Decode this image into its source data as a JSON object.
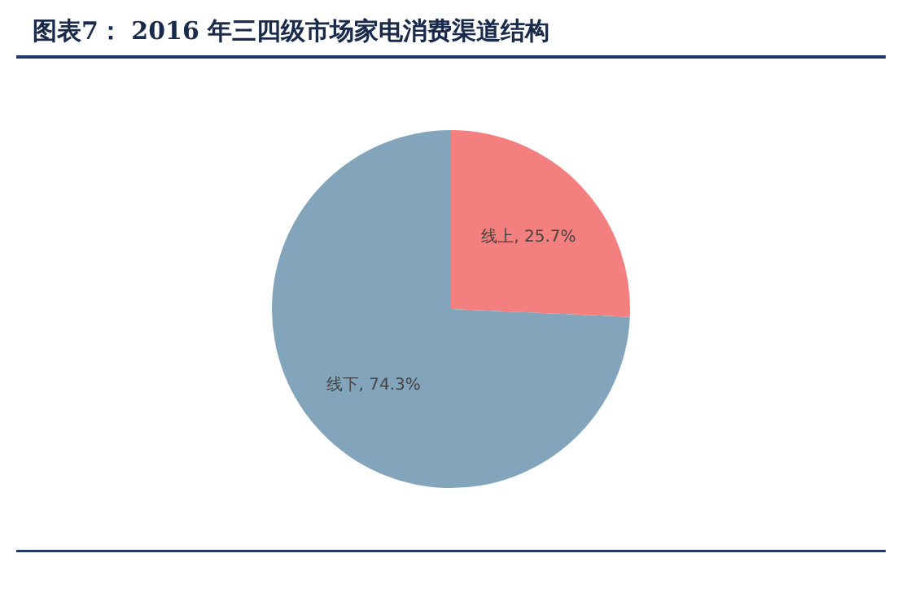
{
  "chart_data": {
    "type": "pie",
    "title": "图表7：  2016 年三四级市场家电消费渠道结构",
    "categories": [
      "线上",
      "线下"
    ],
    "values": [
      25.7,
      74.3
    ],
    "colors": [
      "#f47f7f",
      "#82a5bc"
    ],
    "value_labels": [
      ", 25.7%",
      ", 74.3%"
    ],
    "legend": false
  }
}
